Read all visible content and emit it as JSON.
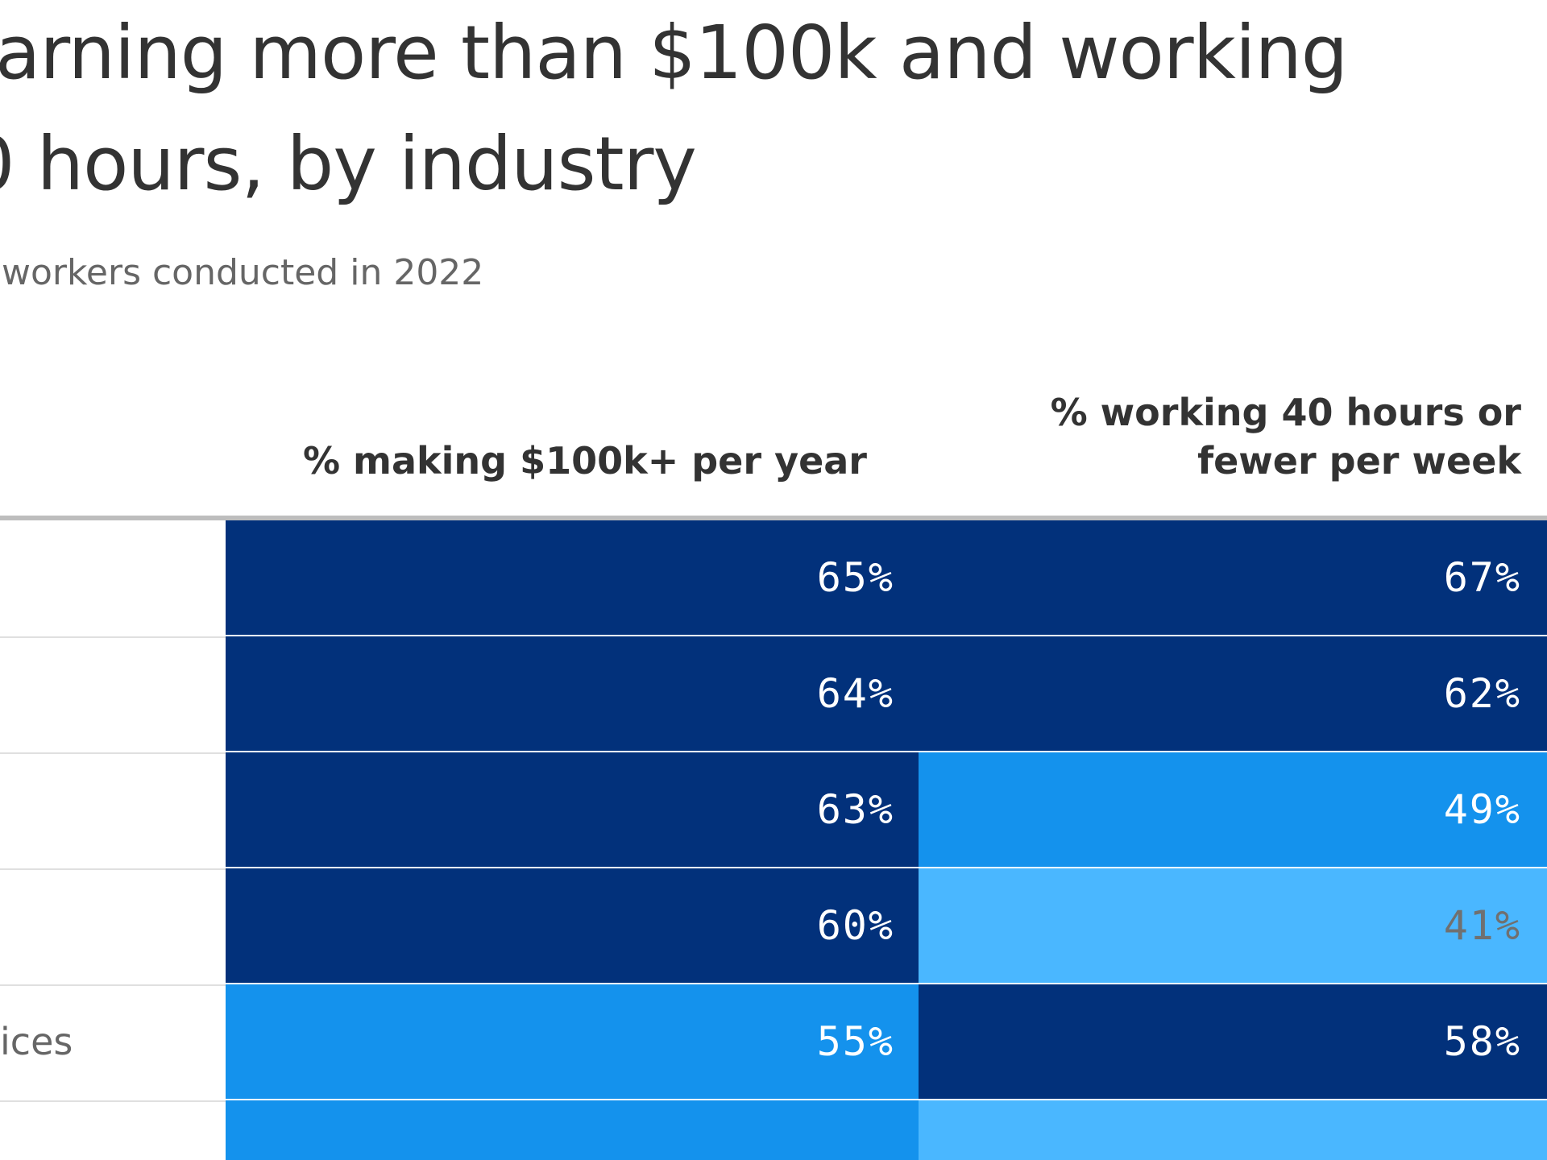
{
  "title": {
    "line1": "arning more than $100k and working",
    "line2": "0 hours, by industry"
  },
  "subtitle": "workers conducted in 2022",
  "columns": {
    "income": "% making $100k+ per year",
    "hours_line1": "% working 40 hours or",
    "hours_line2": "fewer per week"
  },
  "colors": {
    "dark": "#02317b",
    "medium": "#1492ed",
    "light": "#4ab7ff",
    "text_on_dark": "#ffffff",
    "text_on_light": "#707070"
  },
  "chart_data": {
    "type": "table",
    "title": "arning more than $100k and working 0 hours, by industry",
    "subtitle": "workers conducted in 2022",
    "columns": [
      "",
      "% making $100k+ per year",
      "% working 40 hours or fewer per week"
    ],
    "rows": [
      {
        "label": "",
        "income": "65%",
        "income_value": 65,
        "income_level": "dark",
        "hours": "67%",
        "hours_value": 67,
        "hours_level": "dark"
      },
      {
        "label": "",
        "income": "64%",
        "income_value": 64,
        "income_level": "dark",
        "hours": "62%",
        "hours_value": 62,
        "hours_level": "dark"
      },
      {
        "label": "",
        "income": "63%",
        "income_value": 63,
        "income_level": "dark",
        "hours": "49%",
        "hours_value": 49,
        "hours_level": "medium"
      },
      {
        "label": "",
        "income": "60%",
        "income_value": 60,
        "income_level": "dark",
        "hours": "41%",
        "hours_value": 41,
        "hours_level": "light"
      },
      {
        "label": "ices",
        "income": "55%",
        "income_value": 55,
        "income_level": "medium",
        "hours": "58%",
        "hours_value": 58,
        "hours_level": "dark"
      },
      {
        "label": "",
        "income": "",
        "income_value": null,
        "income_level": "medium",
        "hours": "",
        "hours_value": null,
        "hours_level": "light"
      }
    ]
  }
}
